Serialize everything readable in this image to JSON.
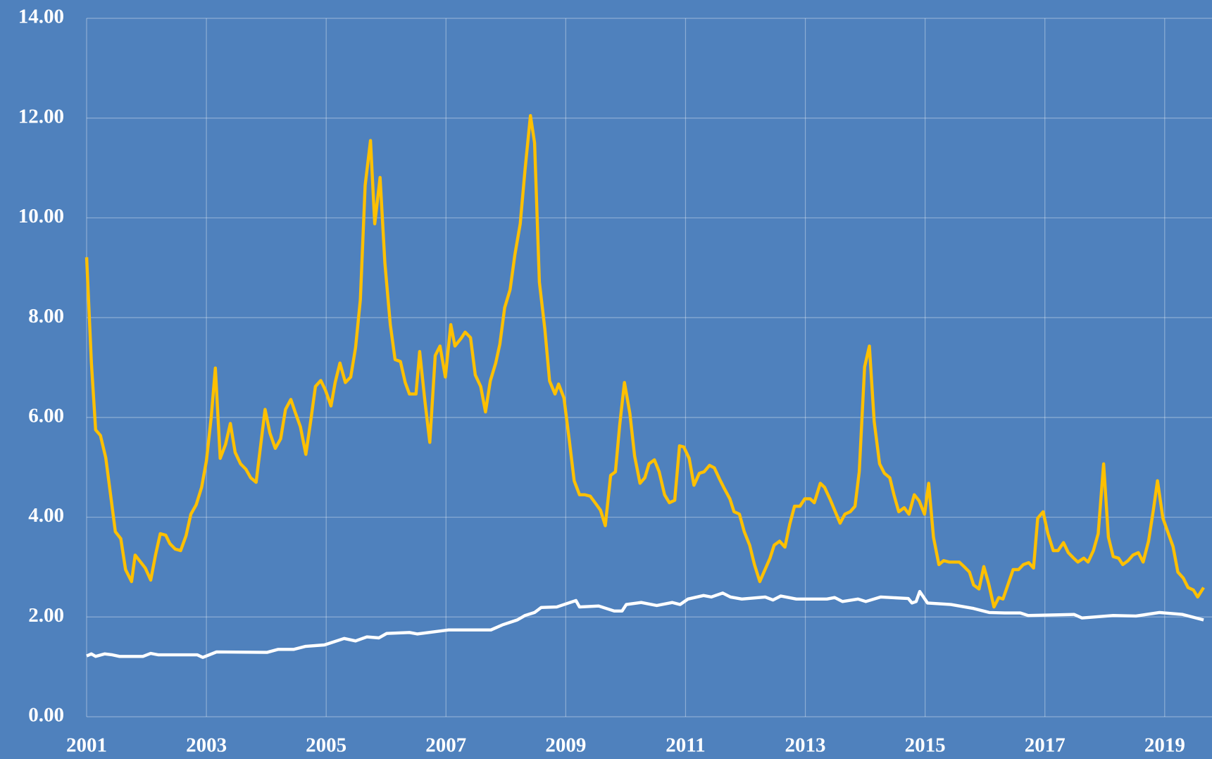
{
  "chart_data": {
    "type": "line",
    "xlim": [
      2001,
      2019.79
    ],
    "xticks": [
      2001,
      2003,
      2005,
      2007,
      2009,
      2011,
      2013,
      2015,
      2017,
      2019
    ],
    "ylim": [
      0,
      14
    ],
    "yticks": [
      {
        "value": 0,
        "label": "0.00"
      },
      {
        "value": 2,
        "label": "2.00"
      },
      {
        "value": 4,
        "label": "4.00"
      },
      {
        "value": 6,
        "label": "6.00"
      },
      {
        "value": 8,
        "label": "8.00"
      },
      {
        "value": 10,
        "label": "10.00"
      },
      {
        "value": 12,
        "label": "12.00"
      },
      {
        "value": 14,
        "label": "14.00"
      }
    ],
    "grid": true,
    "series": [
      {
        "color": "#ffc000",
        "x": [
          2001.0,
          2001.08,
          2001.15,
          2001.23,
          2001.32,
          2001.4,
          2001.48,
          2001.57,
          2001.65,
          2001.75,
          2001.81,
          2001.98,
          2002.07,
          2002.15,
          2002.23,
          2002.32,
          2002.39,
          2002.48,
          2002.57,
          2002.66,
          2002.74,
          2002.83,
          2002.92,
          2003.0,
          2003.08,
          2003.15,
          2003.23,
          2003.32,
          2003.4,
          2003.48,
          2003.57,
          2003.66,
          2003.74,
          2003.83,
          2003.9,
          2003.98,
          2004.06,
          2004.15,
          2004.24,
          2004.32,
          2004.41,
          2004.48,
          2004.57,
          2004.66,
          2004.74,
          2004.82,
          2004.91,
          2004.99,
          2005.08,
          2005.15,
          2005.23,
          2005.32,
          2005.41,
          2005.49,
          2005.57,
          2005.65,
          2005.74,
          2005.81,
          2005.9,
          2005.98,
          2006.07,
          2006.15,
          2006.24,
          2006.32,
          2006.39,
          2006.5,
          2006.56,
          2006.65,
          2006.73,
          2006.82,
          2006.9,
          2006.99,
          2007.08,
          2007.15,
          2007.25,
          2007.32,
          2007.41,
          2007.49,
          2007.58,
          2007.66,
          2007.74,
          2007.83,
          2007.9,
          2007.98,
          2008.07,
          2008.15,
          2008.24,
          2008.32,
          2008.41,
          2008.48,
          2008.56,
          2008.65,
          2008.73,
          2008.82,
          2008.88,
          2008.97,
          2009.06,
          2009.14,
          2009.23,
          2009.32,
          2009.41,
          2009.49,
          2009.58,
          2009.66,
          2009.75,
          2009.83,
          2009.9,
          2009.98,
          2010.07,
          2010.15,
          2010.24,
          2010.32,
          2010.39,
          2010.48,
          2010.56,
          2010.65,
          2010.73,
          2010.82,
          2010.9,
          2010.97,
          2011.06,
          2011.14,
          2011.23,
          2011.31,
          2011.4,
          2011.48,
          2011.57,
          2011.65,
          2011.74,
          2011.81,
          2011.9,
          2011.98,
          2012.07,
          2012.15,
          2012.24,
          2012.32,
          2012.41,
          2012.48,
          2012.57,
          2012.66,
          2012.74,
          2012.82,
          2012.91,
          2012.99,
          2013.08,
          2013.15,
          2013.25,
          2013.32,
          2013.41,
          2013.49,
          2013.58,
          2013.66,
          2013.75,
          2013.83,
          2013.9,
          2013.99,
          2014.07,
          2014.15,
          2014.24,
          2014.32,
          2014.41,
          2014.48,
          2014.56,
          2014.65,
          2014.73,
          2014.82,
          2014.9,
          2014.99,
          2015.06,
          2015.14,
          2015.23,
          2015.31,
          2015.4,
          2015.48,
          2015.57,
          2015.65,
          2015.74,
          2015.81,
          2015.9,
          2015.98,
          2016.06,
          2016.15,
          2016.23,
          2016.3,
          2016.39,
          2016.47,
          2016.56,
          2016.64,
          2016.73,
          2016.81,
          2016.88,
          2016.97,
          2017.05,
          2017.14,
          2017.22,
          2017.31,
          2017.39,
          2017.48,
          2017.55,
          2017.65,
          2017.72,
          2017.81,
          2017.89,
          2017.98,
          2018.06,
          2018.14,
          2018.23,
          2018.3,
          2018.39,
          2018.47,
          2018.56,
          2018.64,
          2018.73,
          2018.81,
          2018.88,
          2018.97,
          2019.05,
          2019.14,
          2019.22,
          2019.31,
          2019.39,
          2019.48,
          2019.55,
          2019.65
        ],
        "values": [
          9.21,
          7.09,
          5.75,
          5.64,
          5.19,
          4.45,
          3.71,
          3.57,
          2.95,
          2.71,
          3.24,
          2.98,
          2.74,
          3.24,
          3.67,
          3.64,
          3.47,
          3.36,
          3.33,
          3.63,
          4.06,
          4.25,
          4.6,
          5.13,
          6.0,
          6.99,
          5.18,
          5.46,
          5.88,
          5.3,
          5.07,
          4.96,
          4.79,
          4.7,
          5.38,
          6.16,
          5.69,
          5.38,
          5.57,
          6.16,
          6.36,
          6.11,
          5.81,
          5.26,
          5.92,
          6.62,
          6.74,
          6.54,
          6.23,
          6.7,
          7.09,
          6.7,
          6.81,
          7.4,
          8.36,
          10.65,
          11.55,
          9.88,
          10.81,
          9.1,
          7.86,
          7.16,
          7.12,
          6.7,
          6.47,
          6.47,
          7.32,
          6.31,
          5.5,
          7.24,
          7.43,
          6.81,
          7.86,
          7.43,
          7.58,
          7.71,
          7.6,
          6.85,
          6.62,
          6.11,
          6.73,
          7.09,
          7.47,
          8.2,
          8.56,
          9.26,
          9.88,
          10.96,
          12.05,
          11.5,
          8.71,
          7.78,
          6.73,
          6.47,
          6.67,
          6.39,
          5.53,
          4.73,
          4.45,
          4.45,
          4.42,
          4.29,
          4.14,
          3.83,
          4.84,
          4.91,
          5.84,
          6.7,
          6.08,
          5.22,
          4.68,
          4.79,
          5.07,
          5.15,
          4.91,
          4.45,
          4.29,
          4.34,
          5.43,
          5.41,
          5.18,
          4.64,
          4.88,
          4.91,
          5.04,
          4.99,
          4.76,
          4.57,
          4.37,
          4.11,
          4.06,
          3.71,
          3.44,
          3.05,
          2.71,
          2.93,
          3.18,
          3.44,
          3.52,
          3.4,
          3.86,
          4.22,
          4.22,
          4.37,
          4.37,
          4.29,
          4.68,
          4.6,
          4.37,
          4.14,
          3.88,
          4.06,
          4.11,
          4.22,
          4.91,
          7.01,
          7.43,
          5.92,
          5.07,
          4.88,
          4.79,
          4.45,
          4.11,
          4.19,
          4.06,
          4.45,
          4.33,
          4.06,
          4.68,
          3.6,
          3.05,
          3.13,
          3.1,
          3.1,
          3.1,
          3.01,
          2.9,
          2.64,
          2.56,
          3.01,
          2.67,
          2.2,
          2.39,
          2.36,
          2.67,
          2.95,
          2.95,
          3.05,
          3.09,
          2.98,
          3.98,
          4.11,
          3.67,
          3.33,
          3.33,
          3.49,
          3.29,
          3.18,
          3.1,
          3.18,
          3.1,
          3.33,
          3.67,
          5.07,
          3.6,
          3.21,
          3.18,
          3.05,
          3.13,
          3.24,
          3.29,
          3.1,
          3.52,
          4.14,
          4.73,
          3.98,
          3.71,
          3.41,
          2.9,
          2.78,
          2.59,
          2.54,
          2.4,
          2.59
        ]
      },
      {
        "color": "#ffffff",
        "x": [
          2001.0,
          2001.08,
          2001.15,
          2001.3,
          2001.43,
          2001.55,
          2001.94,
          2002.07,
          2002.2,
          2002.85,
          2002.94,
          2003.17,
          2004.01,
          2004.2,
          2004.46,
          2004.65,
          2004.97,
          2005.3,
          2005.49,
          2005.68,
          2005.88,
          2006.01,
          2006.39,
          2006.52,
          2007.04,
          2007.75,
          2007.94,
          2008.19,
          2008.32,
          2008.48,
          2008.59,
          2008.85,
          2009.17,
          2009.23,
          2009.55,
          2009.81,
          2009.94,
          2010.01,
          2010.26,
          2010.52,
          2010.78,
          2010.91,
          2011.04,
          2011.3,
          2011.43,
          2011.62,
          2011.75,
          2011.94,
          2012.33,
          2012.46,
          2012.59,
          2012.85,
          2013.36,
          2013.49,
          2013.62,
          2013.88,
          2014.01,
          2014.26,
          2014.72,
          2014.78,
          2014.85,
          2014.91,
          2015.04,
          2015.43,
          2015.81,
          2016.07,
          2016.33,
          2016.59,
          2016.72,
          2017.49,
          2017.62,
          2018.14,
          2018.52,
          2018.91,
          2019.3,
          2019.65
        ],
        "values": [
          1.22,
          1.26,
          1.21,
          1.26,
          1.24,
          1.21,
          1.21,
          1.27,
          1.24,
          1.24,
          1.19,
          1.3,
          1.29,
          1.35,
          1.35,
          1.41,
          1.44,
          1.57,
          1.52,
          1.6,
          1.58,
          1.67,
          1.69,
          1.66,
          1.74,
          1.74,
          1.84,
          1.94,
          2.03,
          2.09,
          2.19,
          2.2,
          2.33,
          2.2,
          2.22,
          2.12,
          2.12,
          2.25,
          2.29,
          2.23,
          2.29,
          2.25,
          2.36,
          2.43,
          2.4,
          2.48,
          2.4,
          2.36,
          2.4,
          2.34,
          2.42,
          2.36,
          2.36,
          2.39,
          2.31,
          2.36,
          2.31,
          2.4,
          2.37,
          2.28,
          2.31,
          2.51,
          2.28,
          2.25,
          2.17,
          2.09,
          2.08,
          2.08,
          2.03,
          2.05,
          1.98,
          2.03,
          2.02,
          2.09,
          2.05,
          1.94
        ]
      }
    ]
  }
}
